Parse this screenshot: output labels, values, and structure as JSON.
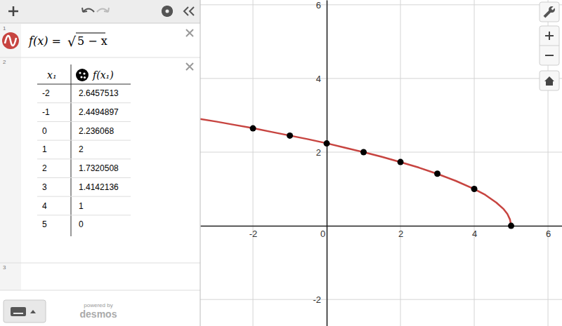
{
  "chart_data": {
    "type": "line",
    "xlim": [
      -3.43,
      6.38
    ],
    "ylim": [
      -2.72,
      6.13
    ],
    "xticks": [
      -2,
      0,
      2,
      4,
      6
    ],
    "yticks": [
      -2,
      2,
      4,
      6
    ],
    "grid": true,
    "series": [
      {
        "type": "line",
        "color": "#c74440",
        "x": [
          -3.43,
          -3,
          -2.5,
          -2,
          -1.5,
          -1,
          -0.5,
          0,
          0.5,
          1,
          1.5,
          2,
          2.5,
          3,
          3.5,
          4,
          4.3,
          4.6,
          4.8,
          4.9,
          4.97,
          5
        ],
        "values": [
          2.9,
          2.83,
          2.74,
          2.65,
          2.55,
          2.45,
          2.35,
          2.24,
          2.12,
          2,
          1.87,
          1.73,
          1.58,
          1.41,
          1.22,
          1,
          0.84,
          0.63,
          0.45,
          0.32,
          0.17,
          0
        ]
      },
      {
        "type": "scatter",
        "color": "#000000",
        "marker": "circle",
        "x": [
          -2,
          -1,
          0,
          1,
          2,
          3,
          4,
          5
        ],
        "values": [
          2.6457513,
          2.4494897,
          2.236068,
          2,
          1.7320508,
          1.4142136,
          1,
          0
        ]
      }
    ]
  },
  "ui": {
    "row_numbers": [
      1,
      2,
      3
    ],
    "expression": {
      "lhs": "f(x) =",
      "radical": "√",
      "radicand": "5 − x"
    },
    "table_headers": [
      "x₁",
      "f(x₁)"
    ],
    "footer": [
      "powered by",
      "desmos"
    ]
  }
}
